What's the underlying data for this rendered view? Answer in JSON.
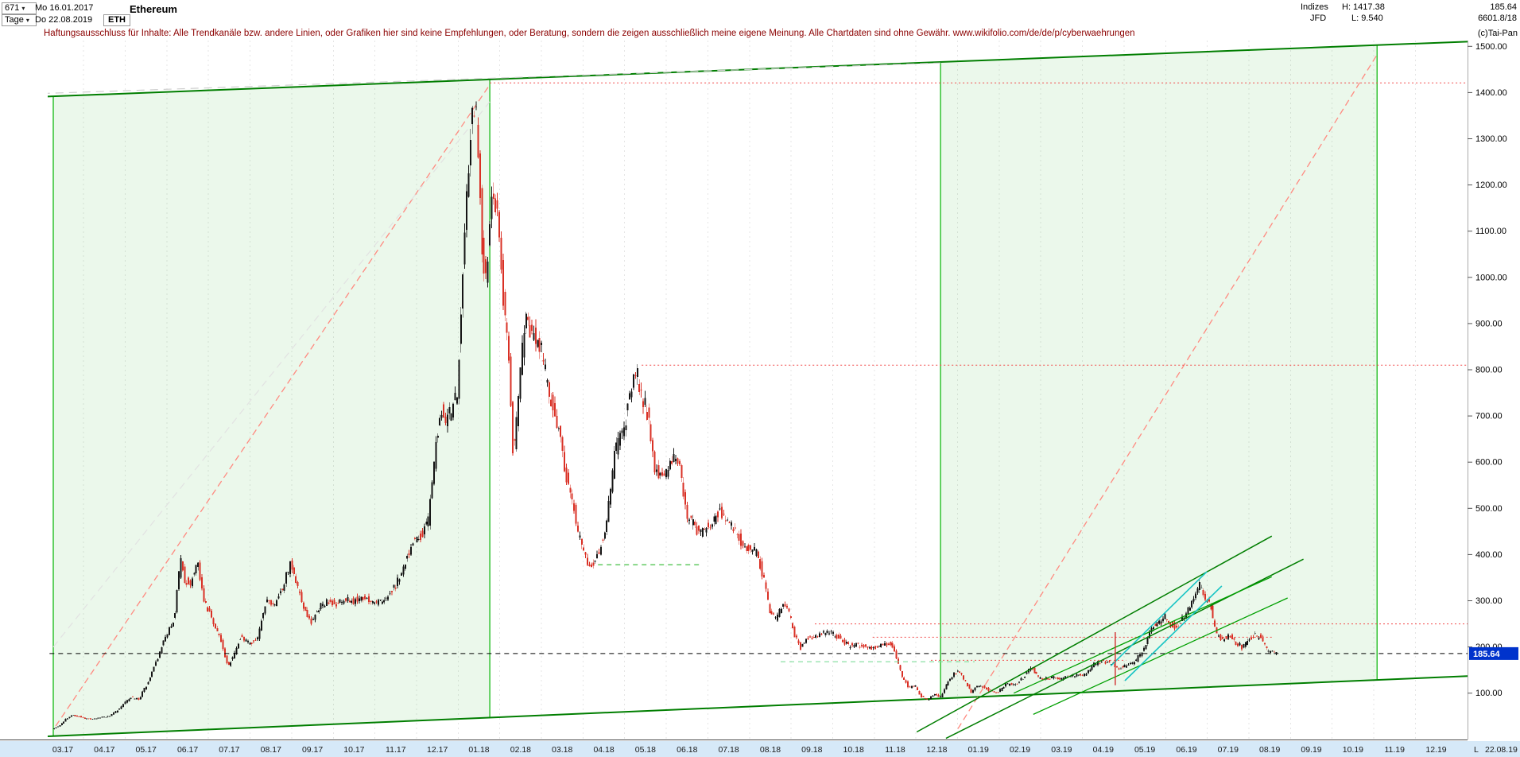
{
  "header": {
    "bars_count": "671",
    "start_date": "Mo 16.01.2017",
    "period": "Tage",
    "end_date": "Do 22.08.2019",
    "symbol": "ETH",
    "title": "Ethereum",
    "right": {
      "group": "Indizes",
      "high": "H: 1417.38",
      "last": "185.64",
      "provider": "JFD",
      "low": "L: 9.540",
      "volume": "6601.8/18",
      "copyright": "(c)Tai-Pan"
    }
  },
  "icons": {
    "caret_down": "▾"
  },
  "disclaimer": "Haftungsausschluss für Inhalte: Alle Trendkanäle bzw. andere Linien, oder Grafiken hier sind keine Empfehlungen, oder Beratung, sondern die zeigen ausschließlich meine eigene Meinung. Alle Chartdaten sind ohne Gewähr.  www.wikifolio.com/de/de/p/cyberwaehrungen",
  "price_axis": {
    "ticks": [
      {
        "value": 1500,
        "label": "1500.00"
      },
      {
        "value": 1400,
        "label": "1400.00"
      },
      {
        "value": 1300,
        "label": "1300.00"
      },
      {
        "value": 1200,
        "label": "1200.00"
      },
      {
        "value": 1100,
        "label": "1100.00"
      },
      {
        "value": 1000,
        "label": "1000.00"
      },
      {
        "value": 900,
        "label": "900.00"
      },
      {
        "value": 800,
        "label": "800.00"
      },
      {
        "value": 700,
        "label": "700.00"
      },
      {
        "value": 600,
        "label": "600.00"
      },
      {
        "value": 500,
        "label": "500.00"
      },
      {
        "value": 400,
        "label": "400.00"
      },
      {
        "value": 300,
        "label": "300.00"
      },
      {
        "value": 200,
        "label": "200.00"
      },
      {
        "value": 100,
        "label": "100.00"
      }
    ],
    "current_label": "185.64",
    "current_value": 185.64,
    "tag_bg": "#0033cc"
  },
  "time_axis": {
    "months": [
      "03.17",
      "04.17",
      "05.17",
      "06.17",
      "07.17",
      "08.17",
      "09.17",
      "10.17",
      "11.17",
      "12.17",
      "01.18",
      "02.18",
      "03.18",
      "04.18",
      "05.18",
      "06.18",
      "07.18",
      "08.18",
      "09.18",
      "10.18",
      "11.18",
      "12.18",
      "01.19",
      "02.19",
      "03.19",
      "04.19",
      "05.19",
      "06.19",
      "07.19",
      "08.19",
      "09.19",
      "10.19",
      "11.19",
      "12.19"
    ],
    "end_marker": "L",
    "end_date": "22.08.19",
    "bg": "#d6e9f8"
  },
  "chart_data": {
    "type": "candlestick",
    "instrument": "Ethereum",
    "symbol": "ETH",
    "timeframe": "Tage",
    "bars": 671,
    "range_start": "16.01.2017",
    "range_end": "22.08.2019",
    "high": 1417.38,
    "low": 9.54,
    "last": 185.64,
    "y_range": [
      0,
      1512
    ],
    "grid": "vertical-monthly-dotted",
    "legend_position": "none",
    "colors": {
      "up": "#141414",
      "down": "#d93025"
    },
    "candles": {
      "count": 638,
      "m_start": 0.27,
      "m_end": 29.68
    },
    "price_path": [
      [
        -0.4,
        11
      ],
      [
        -0.1,
        14
      ],
      [
        0,
        16
      ],
      [
        0.25,
        21
      ],
      [
        0.45,
        30
      ],
      [
        0.6,
        44
      ],
      [
        0.75,
        52
      ],
      [
        0.9,
        50
      ],
      [
        1.05,
        45
      ],
      [
        1.25,
        44
      ],
      [
        1.45,
        48
      ],
      [
        1.65,
        50
      ],
      [
        1.85,
        64
      ],
      [
        2,
        78
      ],
      [
        2.15,
        90
      ],
      [
        2.35,
        87
      ],
      [
        2.55,
        120
      ],
      [
        2.75,
        165
      ],
      [
        2.9,
        200
      ],
      [
        3.05,
        230
      ],
      [
        3.2,
        262
      ],
      [
        3.35,
        390
      ],
      [
        3.45,
        345
      ],
      [
        3.6,
        338
      ],
      [
        3.75,
        388
      ],
      [
        3.9,
        305
      ],
      [
        4.1,
        262
      ],
      [
        4.3,
        218
      ],
      [
        4.5,
        158
      ],
      [
        4.65,
        188
      ],
      [
        4.8,
        224
      ],
      [
        5,
        206
      ],
      [
        5.2,
        220
      ],
      [
        5.4,
        298
      ],
      [
        5.6,
        288
      ],
      [
        5.8,
        328
      ],
      [
        6,
        383
      ],
      [
        6.1,
        348
      ],
      [
        6.3,
        288
      ],
      [
        6.5,
        254
      ],
      [
        6.7,
        289
      ],
      [
        6.9,
        299
      ],
      [
        7.1,
        294
      ],
      [
        7.3,
        304
      ],
      [
        7.5,
        299
      ],
      [
        7.7,
        309
      ],
      [
        7.9,
        299
      ],
      [
        8.1,
        297
      ],
      [
        8.3,
        309
      ],
      [
        8.5,
        329
      ],
      [
        8.7,
        368
      ],
      [
        8.9,
        424
      ],
      [
        9.1,
        438
      ],
      [
        9.3,
        468
      ],
      [
        9.5,
        648
      ],
      [
        9.6,
        718
      ],
      [
        9.7,
        688
      ],
      [
        9.85,
        708
      ],
      [
        10,
        752
      ],
      [
        10.15,
        1048
      ],
      [
        10.3,
        1298
      ],
      [
        10.42,
        1388
      ],
      [
        10.5,
        1278
      ],
      [
        10.6,
        1058
      ],
      [
        10.7,
        998
      ],
      [
        10.8,
        1148
      ],
      [
        10.9,
        1178
      ],
      [
        11,
        1118
      ],
      [
        11.1,
        948
      ],
      [
        11.25,
        818
      ],
      [
        11.35,
        598
      ],
      [
        11.5,
        778
      ],
      [
        11.65,
        918
      ],
      [
        11.8,
        878
      ],
      [
        12,
        853
      ],
      [
        12.2,
        748
      ],
      [
        12.4,
        688
      ],
      [
        12.6,
        578
      ],
      [
        12.75,
        528
      ],
      [
        12.9,
        448
      ],
      [
        13.1,
        388
      ],
      [
        13.25,
        378
      ],
      [
        13.4,
        403
      ],
      [
        13.6,
        478
      ],
      [
        13.8,
        628
      ],
      [
        14,
        668
      ],
      [
        14.15,
        743
      ],
      [
        14.3,
        798
      ],
      [
        14.45,
        738
      ],
      [
        14.6,
        698
      ],
      [
        14.75,
        588
      ],
      [
        14.9,
        568
      ],
      [
        15.05,
        578
      ],
      [
        15.2,
        613
      ],
      [
        15.35,
        588
      ],
      [
        15.5,
        488
      ],
      [
        15.65,
        468
      ],
      [
        15.8,
        448
      ],
      [
        15.95,
        453
      ],
      [
        16.1,
        468
      ],
      [
        16.3,
        493
      ],
      [
        16.5,
        468
      ],
      [
        16.7,
        453
      ],
      [
        16.85,
        418
      ],
      [
        17,
        413
      ],
      [
        17.2,
        403
      ],
      [
        17.35,
        353
      ],
      [
        17.5,
        278
      ],
      [
        17.65,
        263
      ],
      [
        17.8,
        288
      ],
      [
        17.95,
        281
      ],
      [
        18.1,
        228
      ],
      [
        18.25,
        198
      ],
      [
        18.4,
        218
      ],
      [
        18.55,
        223
      ],
      [
        18.7,
        228
      ],
      [
        18.85,
        231
      ],
      [
        19,
        228
      ],
      [
        19.2,
        218
      ],
      [
        19.4,
        203
      ],
      [
        19.6,
        205
      ],
      [
        19.8,
        201
      ],
      [
        20,
        198
      ],
      [
        20.2,
        203
      ],
      [
        20.4,
        210
      ],
      [
        20.55,
        178
      ],
      [
        20.7,
        133
      ],
      [
        20.85,
        113
      ],
      [
        21,
        116
      ],
      [
        21.15,
        93
      ],
      [
        21.3,
        84
      ],
      [
        21.45,
        98
      ],
      [
        21.6,
        90
      ],
      [
        21.75,
        118
      ],
      [
        21.9,
        138
      ],
      [
        22.05,
        150
      ],
      [
        22.2,
        126
      ],
      [
        22.35,
        103
      ],
      [
        22.5,
        116
      ],
      [
        22.65,
        114
      ],
      [
        22.8,
        105
      ],
      [
        23,
        103
      ],
      [
        23.2,
        120
      ],
      [
        23.4,
        118
      ],
      [
        23.6,
        133
      ],
      [
        23.8,
        158
      ],
      [
        23.95,
        135
      ],
      [
        24.1,
        130
      ],
      [
        24.3,
        135
      ],
      [
        24.5,
        132
      ],
      [
        24.7,
        136
      ],
      [
        24.9,
        139
      ],
      [
        25.1,
        140
      ],
      [
        25.3,
        164
      ],
      [
        25.5,
        170
      ],
      [
        25.7,
        163
      ],
      [
        25.9,
        155
      ],
      [
        26.1,
        160
      ],
      [
        26.3,
        170
      ],
      [
        26.5,
        195
      ],
      [
        26.7,
        246
      ],
      [
        26.85,
        253
      ],
      [
        27,
        266
      ],
      [
        27.15,
        248
      ],
      [
        27.3,
        243
      ],
      [
        27.5,
        270
      ],
      [
        27.7,
        308
      ],
      [
        27.85,
        338
      ],
      [
        27.95,
        308
      ],
      [
        28.1,
        288
      ],
      [
        28.25,
        225
      ],
      [
        28.4,
        216
      ],
      [
        28.55,
        228
      ],
      [
        28.7,
        210
      ],
      [
        28.85,
        200
      ],
      [
        29,
        216
      ],
      [
        29.15,
        226
      ],
      [
        29.3,
        220
      ],
      [
        29.45,
        193
      ],
      [
        29.6,
        189
      ],
      [
        29.68,
        186
      ]
    ],
    "annotations": {
      "lines": [
        {
          "name": "upper-channel-line",
          "layer": "under",
          "color": "#007e00",
          "width": 2,
          "dash": null,
          "points": [
            [
              -0.55,
              1389
            ],
            [
              35.6,
              1515
            ]
          ]
        },
        {
          "name": "lower-support-line",
          "layer": "under",
          "color": "#007e00",
          "width": 2,
          "dash": null,
          "points": [
            [
              -0.55,
              4
            ],
            [
              35.6,
              142
            ]
          ]
        },
        {
          "name": "rally-2017-trendline",
          "layer": "under",
          "color": "#ff8a80",
          "width": 1.3,
          "dash": "8,5",
          "points": [
            [
              0.33,
              29
            ],
            [
              10.76,
              1417
            ]
          ]
        },
        {
          "name": "projection-2019-trendline",
          "layer": "under",
          "color": "#ff8a80",
          "width": 1.3,
          "dash": "8,5",
          "points": [
            [
              22.01,
              23
            ],
            [
              32.08,
              1482
            ]
          ]
        },
        {
          "name": "upper-gray-dashed",
          "layer": "under",
          "color": "#cfcfcf",
          "width": 1.2,
          "dash": "10,7",
          "points": [
            [
              0,
              1398
            ],
            [
              21.59,
              1464
            ]
          ]
        },
        {
          "name": "channel-median-dashed",
          "layer": "under",
          "color": "#e2e2e2",
          "width": 1.2,
          "dash": "9,6",
          "points": [
            [
              0.27,
              200
            ],
            [
              10.76,
              1380
            ]
          ]
        },
        {
          "name": "ath-resistance-dotted",
          "layer": "over",
          "color": "#f24b4b",
          "width": 1,
          "dash": "2,3",
          "points": [
            [
              10.76,
              1421
            ],
            [
              34.3,
              1421
            ]
          ]
        },
        {
          "name": "resistance-810-dotted",
          "layer": "over",
          "color": "#f24b4b",
          "width": 1,
          "dash": "2,3",
          "points": [
            [
              14.41,
              810
            ],
            [
              34.3,
              810
            ]
          ]
        },
        {
          "name": "resistance-250-dotted",
          "layer": "over",
          "color": "#f24b4b",
          "width": 1,
          "dash": "2,3",
          "points": [
            [
              18.57,
              250
            ],
            [
              34.3,
              250
            ]
          ]
        },
        {
          "name": "resistance-221-dotted",
          "layer": "over",
          "color": "#f24b4b",
          "width": 1,
          "dash": "2,3",
          "points": [
            [
              19.96,
              221
            ],
            [
              29.6,
              221
            ]
          ]
        },
        {
          "name": "resistance-171-dotted",
          "layer": "over",
          "color": "#f24b4b",
          "width": 1,
          "dash": "2,3",
          "points": [
            [
              21.36,
              171
            ],
            [
              26.05,
              171
            ]
          ]
        },
        {
          "name": "current-price-dashed",
          "layer": "over",
          "color": "#000000",
          "width": 1,
          "dash": "6,5",
          "points": [
            [
              -0.45,
              185.64
            ],
            [
              34.3,
              185.64
            ]
          ]
        },
        {
          "name": "support-378-green-dashed",
          "layer": "over",
          "color": "#2eb82e",
          "width": 1.2,
          "dash": "6,5",
          "points": [
            [
              13.36,
              378
            ],
            [
              15.88,
              378
            ]
          ]
        },
        {
          "name": "support-168-green-dashed",
          "layer": "over",
          "color": "#7fdd9a",
          "width": 1.2,
          "dash": "6,5",
          "points": [
            [
              17.75,
              168
            ],
            [
              22.41,
              168
            ]
          ]
        },
        {
          "name": "recovery-trendline-1",
          "layer": "over",
          "color": "#007e00",
          "width": 1.5,
          "dash": null,
          "points": [
            [
              21.02,
              16
            ],
            [
              29.55,
              440
            ]
          ]
        },
        {
          "name": "recovery-trendline-2",
          "layer": "over",
          "color": "#007e00",
          "width": 1.5,
          "dash": null,
          "points": [
            [
              21.72,
              2
            ],
            [
              30.31,
              390
            ]
          ]
        },
        {
          "name": "mini-channel-upper",
          "layer": "over",
          "color": "#00a000",
          "width": 1.3,
          "dash": null,
          "points": [
            [
              23.35,
              100
            ],
            [
              29.55,
              352
            ]
          ]
        },
        {
          "name": "mini-channel-lower",
          "layer": "over",
          "color": "#00a000",
          "width": 1.3,
          "dash": null,
          "points": [
            [
              23.82,
              54
            ],
            [
              29.93,
              306
            ]
          ]
        },
        {
          "name": "cyan-channel-upper",
          "layer": "over",
          "color": "#17c4c4",
          "width": 1.6,
          "dash": null,
          "points": [
            [
              25.68,
              159
            ],
            [
              27.99,
              363
            ]
          ]
        },
        {
          "name": "cyan-channel-lower",
          "layer": "over",
          "color": "#17c4c4",
          "width": 1.6,
          "dash": null,
          "points": [
            [
              26.02,
              127
            ],
            [
              28.35,
              332
            ]
          ]
        },
        {
          "name": "red-vertical-mark",
          "layer": "over",
          "color": "#d02020",
          "width": 1.3,
          "dash": null,
          "points": [
            [
              25.79,
              232
            ],
            [
              25.79,
              117
            ]
          ]
        }
      ],
      "channels": [
        {
          "name": "trend-channel-2017",
          "from": 0.27,
          "to": 10.76,
          "fill": "rgba(0,170,0,0.08)",
          "edge": "#00b400"
        },
        {
          "name": "trend-channel-2019",
          "from": 21.59,
          "to": 32.08,
          "fill": "rgba(0,170,0,0.08)",
          "edge": "#00b400"
        }
      ]
    }
  }
}
